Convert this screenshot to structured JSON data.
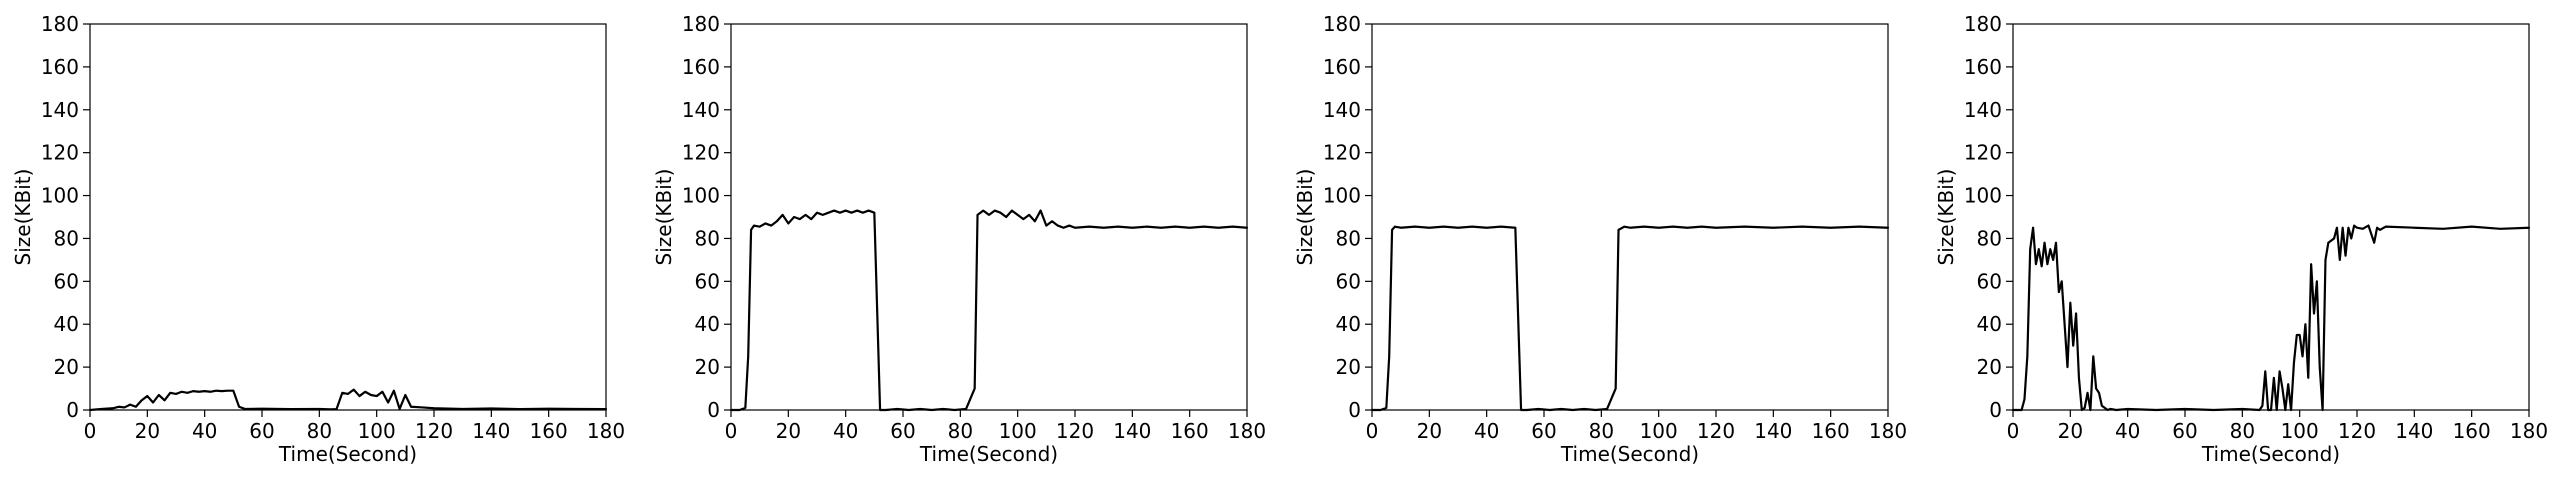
{
  "chart_data": [
    {
      "type": "line",
      "xlabel": "Time(Second)",
      "ylabel": "Size(KBit)",
      "xlim": [
        0,
        180
      ],
      "ylim": [
        0,
        180
      ],
      "xticks": [
        0,
        20,
        40,
        60,
        80,
        100,
        120,
        140,
        160,
        180
      ],
      "yticks": [
        0,
        20,
        40,
        60,
        80,
        100,
        120,
        140,
        160,
        180
      ],
      "grid": false,
      "series": [
        {
          "color": "#000000",
          "x": [
            0,
            4,
            8,
            10,
            12,
            14,
            16,
            18,
            20,
            22,
            24,
            26,
            28,
            30,
            32,
            34,
            36,
            38,
            40,
            42,
            44,
            46,
            48,
            50,
            52,
            54,
            60,
            70,
            80,
            84,
            86,
            88,
            90,
            92,
            94,
            96,
            98,
            100,
            102,
            104,
            106,
            108,
            110,
            112,
            116,
            120,
            130,
            140,
            150,
            160,
            170,
            180
          ],
          "y": [
            0,
            0.5,
            0.8,
            1.5,
            1.2,
            2.5,
            1.5,
            4.5,
            6.5,
            3.5,
            7,
            4.5,
            8,
            7.5,
            8.5,
            8,
            8.8,
            8.5,
            8.8,
            8.5,
            9,
            8.8,
            9,
            9,
            1.5,
            0.5,
            0.6,
            0.4,
            0.5,
            0.3,
            0.4,
            8,
            7.5,
            9.5,
            6.5,
            8.5,
            7,
            6.5,
            8.5,
            3.5,
            9,
            0.5,
            7,
            1.5,
            1.2,
            0.8,
            0.5,
            0.7,
            0.4,
            0.6,
            0.5,
            0.4
          ]
        }
      ]
    },
    {
      "type": "line",
      "xlabel": "Time(Second)",
      "ylabel": "Size(KBit)",
      "xlim": [
        0,
        180
      ],
      "ylim": [
        0,
        180
      ],
      "xticks": [
        0,
        20,
        40,
        60,
        80,
        100,
        120,
        140,
        160,
        180
      ],
      "yticks": [
        0,
        20,
        40,
        60,
        80,
        100,
        120,
        140,
        160,
        180
      ],
      "grid": false,
      "series": [
        {
          "color": "#000000",
          "x": [
            0,
            3,
            5,
            6,
            7,
            8,
            10,
            12,
            14,
            16,
            18,
            20,
            22,
            24,
            26,
            28,
            30,
            32,
            34,
            36,
            38,
            40,
            42,
            44,
            46,
            48,
            50,
            52,
            54,
            58,
            62,
            66,
            70,
            74,
            78,
            82,
            85,
            86,
            88,
            90,
            92,
            94,
            96,
            98,
            100,
            102,
            104,
            106,
            108,
            110,
            112,
            114,
            116,
            118,
            120,
            125,
            130,
            135,
            140,
            145,
            150,
            155,
            160,
            165,
            170,
            175,
            180
          ],
          "y": [
            0,
            0,
            1,
            25,
            84,
            86,
            85.5,
            87,
            86,
            88,
            91,
            87,
            90,
            89,
            91,
            89,
            92,
            91,
            92,
            93,
            92,
            93,
            92,
            93,
            92,
            93,
            92,
            0,
            0,
            0.5,
            0,
            0.5,
            0,
            0.5,
            0,
            0.5,
            10,
            91,
            93,
            91,
            93,
            92,
            90,
            93,
            91,
            89,
            91,
            88,
            93,
            86,
            88,
            86,
            85,
            86,
            85,
            85.5,
            85,
            85.5,
            85,
            85.5,
            85,
            85.5,
            85,
            85.5,
            85,
            85.5,
            85
          ]
        }
      ]
    },
    {
      "type": "line",
      "xlabel": "Time(Second)",
      "ylabel": "Size(KBit)",
      "xlim": [
        0,
        180
      ],
      "ylim": [
        0,
        180
      ],
      "xticks": [
        0,
        20,
        40,
        60,
        80,
        100,
        120,
        140,
        160,
        180
      ],
      "yticks": [
        0,
        20,
        40,
        60,
        80,
        100,
        120,
        140,
        160,
        180
      ],
      "grid": false,
      "series": [
        {
          "color": "#000000",
          "x": [
            0,
            3,
            5,
            6,
            7,
            8,
            10,
            15,
            20,
            25,
            30,
            35,
            40,
            45,
            50,
            52,
            54,
            58,
            62,
            66,
            70,
            74,
            78,
            82,
            85,
            86,
            88,
            90,
            95,
            100,
            105,
            110,
            115,
            120,
            130,
            140,
            150,
            160,
            170,
            180
          ],
          "y": [
            0,
            0,
            1,
            25,
            84,
            85.5,
            85,
            85.5,
            85,
            85.5,
            85,
            85.5,
            85,
            85.5,
            85,
            0,
            0,
            0.5,
            0,
            0.5,
            0,
            0.5,
            0,
            0.5,
            10,
            84,
            85.5,
            85,
            85.5,
            85,
            85.5,
            85,
            85.5,
            85,
            85.5,
            85,
            85.5,
            85,
            85.5,
            85
          ]
        }
      ]
    },
    {
      "type": "line",
      "xlabel": "Time(Second)",
      "ylabel": "Size(KBit)",
      "xlim": [
        0,
        180
      ],
      "ylim": [
        0,
        180
      ],
      "xticks": [
        0,
        20,
        40,
        60,
        80,
        100,
        120,
        140,
        160,
        180
      ],
      "yticks": [
        0,
        20,
        40,
        60,
        80,
        100,
        120,
        140,
        160,
        180
      ],
      "grid": false,
      "series": [
        {
          "color": "#000000",
          "x": [
            0,
            3,
            4,
            5,
            6,
            7,
            8,
            9,
            10,
            11,
            12,
            13,
            14,
            15,
            16,
            17,
            18,
            19,
            20,
            21,
            22,
            23,
            24,
            25,
            26,
            27,
            28,
            29,
            30,
            31,
            32,
            33,
            34,
            36,
            40,
            50,
            60,
            70,
            80,
            86,
            87,
            88,
            89,
            90,
            91,
            92,
            93,
            94,
            95,
            96,
            97,
            98,
            99,
            100,
            101,
            102,
            103,
            104,
            105,
            106,
            107,
            108,
            109,
            110,
            112,
            113,
            114,
            115,
            116,
            117,
            118,
            119,
            120,
            122,
            124,
            126,
            127,
            128,
            130,
            140,
            150,
            160,
            170,
            180
          ],
          "y": [
            0,
            0,
            5,
            25,
            75,
            85,
            68,
            75,
            67,
            78,
            68,
            75,
            70,
            78,
            55,
            60,
            40,
            20,
            50,
            30,
            45,
            15,
            0,
            1,
            8,
            0,
            25,
            10,
            8,
            2,
            1,
            0,
            0.5,
            0,
            0.5,
            0,
            0.5,
            0,
            0.5,
            0,
            2,
            18,
            0,
            0,
            15,
            0,
            18,
            10,
            0,
            12,
            0,
            22,
            35,
            35,
            25,
            40,
            15,
            68,
            45,
            60,
            20,
            0,
            70,
            78,
            80,
            85,
            70,
            85,
            72,
            85,
            80,
            86,
            85,
            84.5,
            86,
            78,
            85,
            84,
            85.5,
            85,
            84.5,
            85.5,
            84.5,
            85
          ]
        }
      ]
    }
  ]
}
